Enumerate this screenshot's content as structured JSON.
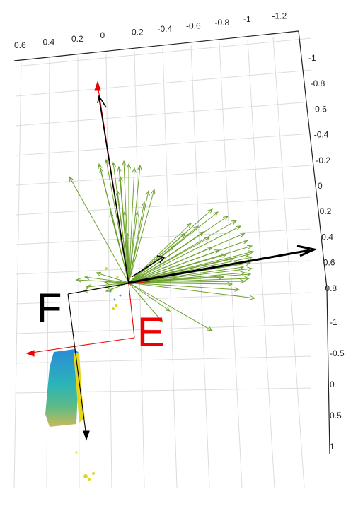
{
  "figure": {
    "top_axis_ticks": [
      "0.6",
      "0.4",
      "0.2",
      "0",
      "-0.2",
      "-0.4",
      "-0.6",
      "-0.8",
      "-1",
      "-1.2"
    ],
    "right_axis_ticks_upper": [
      "-1",
      "-0.8",
      "-0.6",
      "-0.4",
      "-0.2",
      "0",
      "0.2",
      "0.4",
      "0.6",
      "0.8"
    ],
    "right_axis_ticks_lower": [
      "-1",
      "-0.5",
      "0",
      "0.5",
      "1"
    ],
    "labels": {
      "frame_f": "F",
      "frame_e": "E"
    },
    "colors": {
      "vectors": "#6ea22e",
      "frame_e": "#ee0000",
      "frame_f": "#000000",
      "grid": "#dcdcdc",
      "main_arrow": "#000000"
    }
  }
}
